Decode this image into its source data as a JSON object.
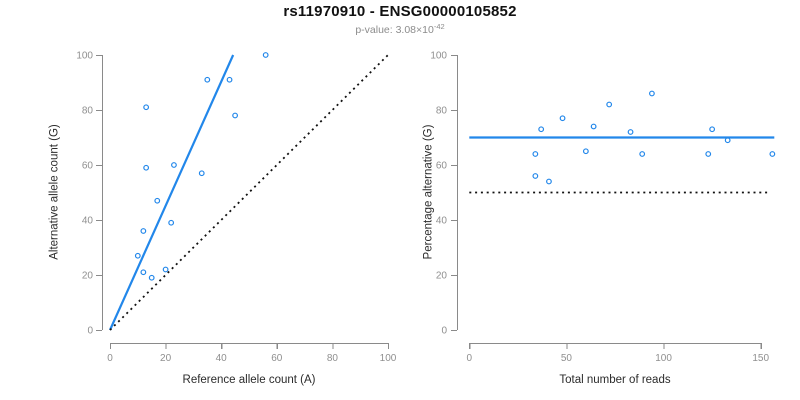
{
  "title": "rs11970910 - ENSG00000105852",
  "subtitle": {
    "prefix": "p-value: 3.08×10",
    "exponent": "-42"
  },
  "colors": {
    "blue": "#2287ea",
    "black": "#111111",
    "axis": "#8a8a8a",
    "tick_label": "#8f8f8f",
    "title_text": "#111111",
    "subtitle_text": "#8c8c8c"
  },
  "chart_data": [
    {
      "type": "scatter",
      "panel": "left",
      "xlabel": "Reference allele count (A)",
      "ylabel": "Alternative allele count (G)",
      "xlim": [
        0,
        100
      ],
      "ylim": [
        0,
        100
      ],
      "xticks": [
        0,
        20,
        40,
        60,
        80,
        100
      ],
      "yticks": [
        0,
        20,
        40,
        60,
        80,
        100
      ],
      "grid": false,
      "legend": null,
      "points": [
        [
          56,
          100
        ],
        [
          35,
          91
        ],
        [
          43,
          91
        ],
        [
          13,
          81
        ],
        [
          45,
          78
        ],
        [
          23,
          60
        ],
        [
          13,
          59
        ],
        [
          33,
          57
        ],
        [
          17,
          47
        ],
        [
          22,
          39
        ],
        [
          12,
          36
        ],
        [
          10,
          27
        ],
        [
          20,
          22
        ],
        [
          12,
          21
        ],
        [
          15,
          19
        ]
      ],
      "lines": [
        {
          "name": "fit-line",
          "style": "solid",
          "color_key": "blue",
          "x": [
            0,
            44.3
          ],
          "y": [
            0,
            100
          ]
        },
        {
          "name": "identity-line",
          "style": "dotted",
          "color_key": "black",
          "x": [
            0,
            100
          ],
          "y": [
            0,
            100
          ]
        }
      ]
    },
    {
      "type": "scatter",
      "panel": "right",
      "xlabel": "Total number of reads",
      "ylabel": "Percentage alternative (G)",
      "xlim": [
        0,
        157
      ],
      "ylim": [
        0,
        100
      ],
      "xticks": [
        0,
        50,
        100,
        150
      ],
      "yticks": [
        0,
        20,
        40,
        60,
        80,
        100
      ],
      "grid": false,
      "legend": null,
      "points": [
        [
          34,
          64
        ],
        [
          34,
          56
        ],
        [
          41,
          54
        ],
        [
          37,
          73
        ],
        [
          48,
          77
        ],
        [
          60,
          65
        ],
        [
          64,
          74
        ],
        [
          72,
          82
        ],
        [
          83,
          72
        ],
        [
          89,
          64
        ],
        [
          94,
          86
        ],
        [
          123,
          64
        ],
        [
          125,
          73
        ],
        [
          133,
          69
        ],
        [
          156,
          64
        ]
      ],
      "lines": [
        {
          "name": "mean-line",
          "style": "solid",
          "color_key": "blue",
          "x": [
            0,
            157
          ],
          "y": [
            70,
            70
          ]
        },
        {
          "name": "reference-line",
          "style": "dotted",
          "color_key": "black",
          "x": [
            0,
            154
          ],
          "y": [
            50,
            50
          ]
        }
      ]
    }
  ]
}
